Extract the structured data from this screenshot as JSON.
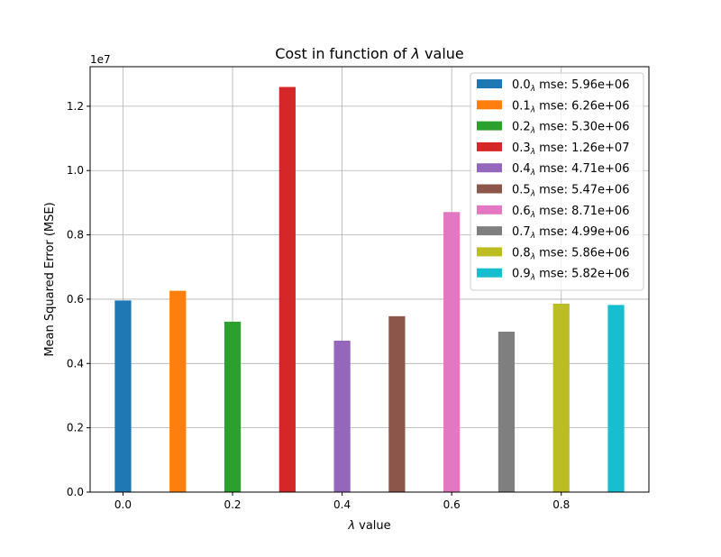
{
  "chart_data": {
    "type": "bar",
    "title_prefix": "Cost in function of ",
    "title_symbol": "λ",
    "title_suffix": " value",
    "xlabel_symbol": "λ",
    "xlabel_suffix": " value",
    "ylabel": "Mean Squared Error (MSE)",
    "y_offset_label": "1e7",
    "y_scale": 10000000,
    "xlim": [
      -0.06,
      0.96
    ],
    "ylim": [
      0,
      13230000
    ],
    "x_ticks": [
      0.0,
      0.2,
      0.4,
      0.6,
      0.8
    ],
    "x_tick_labels": [
      "0.0",
      "0.2",
      "0.4",
      "0.6",
      "0.8"
    ],
    "y_ticks": [
      0,
      2000000,
      4000000,
      6000000,
      8000000,
      10000000,
      12000000
    ],
    "y_tick_labels": [
      "0.0",
      "0.2",
      "0.4",
      "0.6",
      "0.8",
      "1.0",
      "1.2"
    ],
    "grid": true,
    "legend_placement": "top-right",
    "bar_width": 0.03,
    "series": [
      {
        "x": 0.0,
        "value": 5960000,
        "color": "#1f77b4",
        "legend_prefix": "0.0",
        "legend_sub": "λ",
        "legend_suffix": " mse: 5.96e+06"
      },
      {
        "x": 0.1,
        "value": 6260000,
        "color": "#ff7f0e",
        "legend_prefix": "0.1",
        "legend_sub": "λ",
        "legend_suffix": " mse: 6.26e+06"
      },
      {
        "x": 0.2,
        "value": 5300000,
        "color": "#2ca02c",
        "legend_prefix": "0.2",
        "legend_sub": "λ",
        "legend_suffix": " mse: 5.30e+06"
      },
      {
        "x": 0.3,
        "value": 12600000,
        "color": "#d62728",
        "legend_prefix": "0.3",
        "legend_sub": "λ",
        "legend_suffix": " mse: 1.26e+07"
      },
      {
        "x": 0.4,
        "value": 4710000,
        "color": "#9467bd",
        "legend_prefix": "0.4",
        "legend_sub": "λ",
        "legend_suffix": " mse: 4.71e+06"
      },
      {
        "x": 0.5,
        "value": 5470000,
        "color": "#8c564b",
        "legend_prefix": "0.5",
        "legend_sub": "λ",
        "legend_suffix": " mse: 5.47e+06"
      },
      {
        "x": 0.6,
        "value": 8710000,
        "color": "#e377c2",
        "legend_prefix": "0.6",
        "legend_sub": "λ",
        "legend_suffix": " mse: 8.71e+06"
      },
      {
        "x": 0.7,
        "value": 4990000,
        "color": "#7f7f7f",
        "legend_prefix": "0.7",
        "legend_sub": "λ",
        "legend_suffix": " mse: 4.99e+06"
      },
      {
        "x": 0.8,
        "value": 5860000,
        "color": "#bcbd22",
        "legend_prefix": "0.8",
        "legend_sub": "λ",
        "legend_suffix": " mse: 5.86e+06"
      },
      {
        "x": 0.9,
        "value": 5820000,
        "color": "#17becf",
        "legend_prefix": "0.9",
        "legend_sub": "λ",
        "legend_suffix": " mse: 5.82e+06"
      }
    ]
  }
}
